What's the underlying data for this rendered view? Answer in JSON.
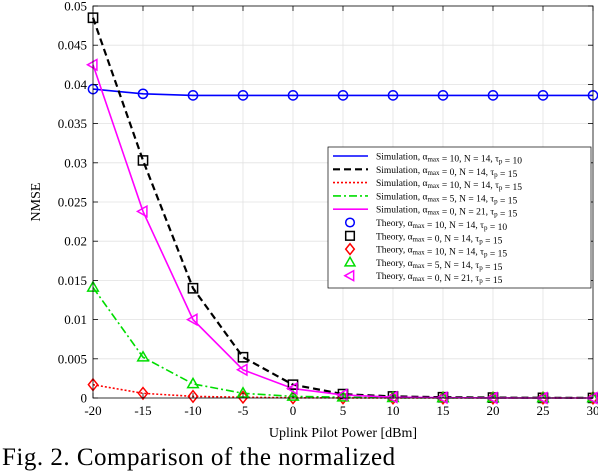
{
  "chart_data": {
    "type": "line",
    "xlabel": "Uplink Pilot Power [dBm]",
    "ylabel": "NMSE",
    "xlim": [
      -20,
      30
    ],
    "ylim": [
      0,
      0.05
    ],
    "x": [
      -20,
      -15,
      -10,
      -5,
      0,
      5,
      10,
      15,
      20,
      25,
      30
    ],
    "xticks": [
      "-20",
      "-15",
      "-10",
      "-5",
      "0",
      "5",
      "10",
      "15",
      "20",
      "25",
      "30"
    ],
    "yticks": [
      "0",
      "0.005",
      "0.01",
      "0.015",
      "0.02",
      "0.025",
      "0.03",
      "0.035",
      "0.04",
      "0.045",
      "0.05"
    ],
    "grid": true,
    "legend_position": "right",
    "series": [
      {
        "name": "Simulation, α_max = 10, N = 14, τ_p = 10",
        "kind": "line",
        "style": "solid",
        "color": "#0000ff",
        "values": [
          0.0394,
          0.0388,
          0.0386,
          0.0386,
          0.0386,
          0.0386,
          0.0386,
          0.0386,
          0.0386,
          0.0386,
          0.0386
        ]
      },
      {
        "name": "Simulation, α_max = 0, N = 14, τ_p = 15",
        "kind": "line",
        "style": "dashed",
        "color": "#000000",
        "values": [
          0.0485,
          0.0303,
          0.014,
          0.0052,
          0.0017,
          0.0005,
          0.0002,
          0.0001,
          5e-05,
          2e-05,
          1e-05
        ]
      },
      {
        "name": "Simulation, α_max = 10, N = 14, τ_p = 15",
        "kind": "line",
        "style": "dotted",
        "color": "#ff0000",
        "values": [
          0.0017,
          0.0006,
          0.0002,
          0.0001,
          3e-05,
          1e-05,
          0.0,
          0.0,
          0.0,
          0.0,
          0.0
        ]
      },
      {
        "name": "Simulation, α_max = 5, N = 14, τ_p = 15",
        "kind": "line",
        "style": "dashdot",
        "color": "#00dd00",
        "values": [
          0.0141,
          0.0052,
          0.0018,
          0.0006,
          0.0002,
          0.0001,
          3e-05,
          1e-05,
          0.0,
          0.0,
          0.0
        ]
      },
      {
        "name": "Simulation, α_max = 0, N = 21, τ_p = 15",
        "kind": "line",
        "style": "solid",
        "color": "#ff00ff",
        "values": [
          0.0425,
          0.0238,
          0.01,
          0.0036,
          0.0012,
          0.0004,
          0.0001,
          4e-05,
          1e-05,
          0.0,
          0.0
        ]
      },
      {
        "name": "Theory, α_max = 10, N = 14, τ_p = 10",
        "kind": "marker",
        "marker": "circle",
        "color": "#0000ff",
        "values": [
          0.0394,
          0.0388,
          0.0386,
          0.0386,
          0.0386,
          0.0386,
          0.0386,
          0.0386,
          0.0386,
          0.0386,
          0.0386
        ]
      },
      {
        "name": "Theory, α_max = 0, N = 14, τ_p = 15",
        "kind": "marker",
        "marker": "square",
        "color": "#000000",
        "values": [
          0.0485,
          0.0303,
          0.014,
          0.0052,
          0.0017,
          0.0005,
          0.0002,
          0.0001,
          5e-05,
          2e-05,
          1e-05
        ]
      },
      {
        "name": "Theory, α_max = 10, N = 14, τ_p = 15",
        "kind": "marker",
        "marker": "diamond",
        "color": "#ff0000",
        "values": [
          0.0017,
          0.0006,
          0.0002,
          0.0001,
          3e-05,
          1e-05,
          0.0,
          0.0,
          0.0,
          0.0,
          0.0
        ]
      },
      {
        "name": "Theory, α_max = 5, N = 14, τ_p = 15",
        "kind": "marker",
        "marker": "triangle-up",
        "color": "#00dd00",
        "values": [
          0.0141,
          0.0052,
          0.0018,
          0.0006,
          0.0002,
          0.0001,
          3e-05,
          1e-05,
          0.0,
          0.0,
          0.0
        ]
      },
      {
        "name": "Theory, α_max = 0, N = 21, τ_p = 15",
        "kind": "marker",
        "marker": "triangle-left",
        "color": "#ff00ff",
        "values": [
          0.0425,
          0.0238,
          0.01,
          0.0036,
          0.0012,
          0.0004,
          0.0001,
          4e-05,
          1e-05,
          0.0,
          0.0
        ]
      }
    ]
  },
  "caption": "Fig. 2.  Comparison of the normalized"
}
